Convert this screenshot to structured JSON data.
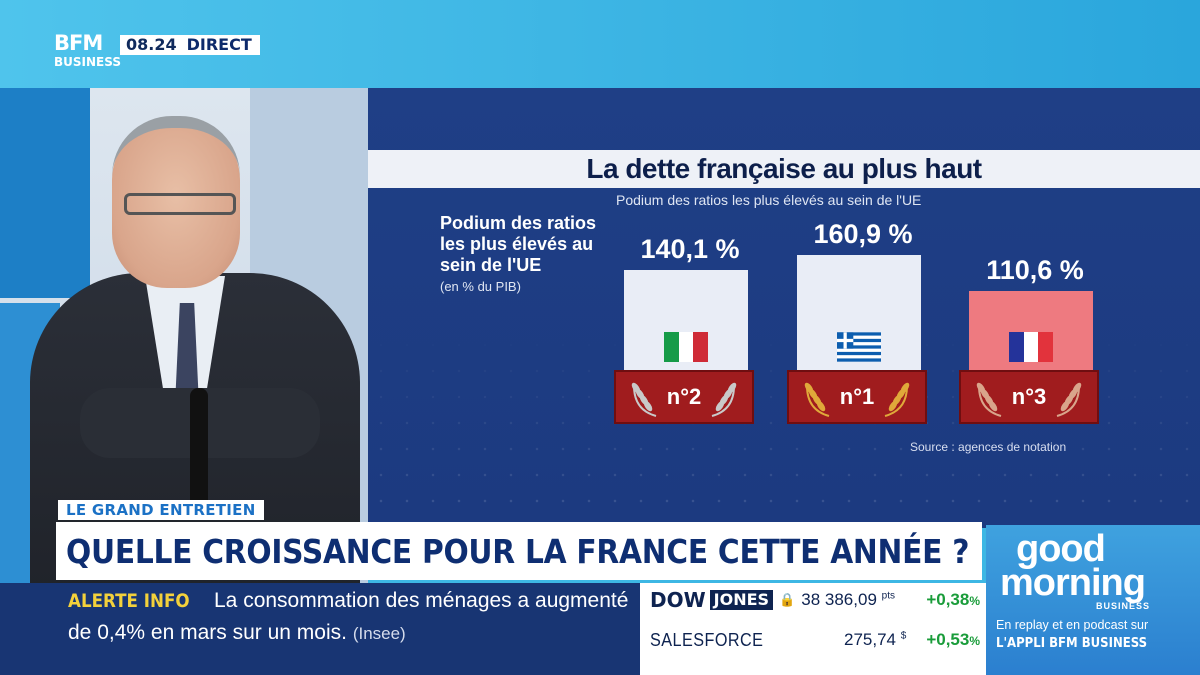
{
  "header": {
    "logo_line1": "BFM",
    "logo_line2": "BUSINESS",
    "time": "08.24",
    "live_label": "DIRECT"
  },
  "graphic": {
    "title": "La dette française au plus haut",
    "subtitle": "Podium des ratios les plus élevés au sein de l'UE",
    "side_title": "Podium des ratios les plus élevés au sein de l'UE",
    "side_unit": "(en % du PIB)",
    "source": "Source : agences de notation",
    "podium": [
      {
        "value_label": "140,1 %",
        "value": 140.1,
        "rank": "n°2",
        "flag": "italy-flag",
        "bar_color": "#e9edf6"
      },
      {
        "value_label": "160,9 %",
        "value": 160.9,
        "rank": "n°1",
        "flag": "greece-flag",
        "bar_color": "#e9edf6"
      },
      {
        "value_label": "110,6 %",
        "value": 110.6,
        "rank": "n°3",
        "flag": "france-flag",
        "bar_color": "#ee7a80"
      }
    ]
  },
  "lower_third": {
    "tag": "LE GRAND ENTRETIEN",
    "headline": "QUELLE CROISSANCE POUR LA FRANCE CETTE ANNÉE ?"
  },
  "ticker": {
    "label": "ALERTE INFO",
    "line1": "La consommation des ménages a augmenté",
    "line2": "de 0,4% en mars sur un mois.",
    "source": "(Insee)"
  },
  "market": {
    "dow_label": "DOW",
    "jones_label": "JONES",
    "dow_value": "38 386,09",
    "dow_unit": "pts",
    "dow_change": "+0,38",
    "stock_name": "SALESFORCE",
    "stock_value": "275,74",
    "stock_currency": "$",
    "stock_change": "+0,53",
    "percent_sign": "%",
    "change_color": "#1a9c3a"
  },
  "promo": {
    "word1": "good",
    "word2": "morning",
    "word3": "BUSINESS",
    "line1": "En replay et en podcast sur",
    "line2": "L'APPLI BFM BUSINESS"
  }
}
